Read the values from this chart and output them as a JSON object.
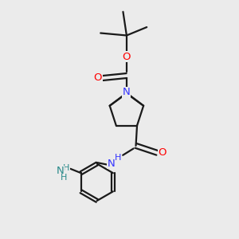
{
  "bg_color": "#ebebeb",
  "bond_color": "#1a1a1a",
  "N_color": "#3333ff",
  "O_color": "#ff0000",
  "NH2_color": "#2a8a8a",
  "NH_color": "#3333ff",
  "figsize": [
    3.0,
    3.0
  ],
  "dpi": 100,
  "xlim": [
    0,
    10
  ],
  "ylim": [
    0,
    10
  ]
}
